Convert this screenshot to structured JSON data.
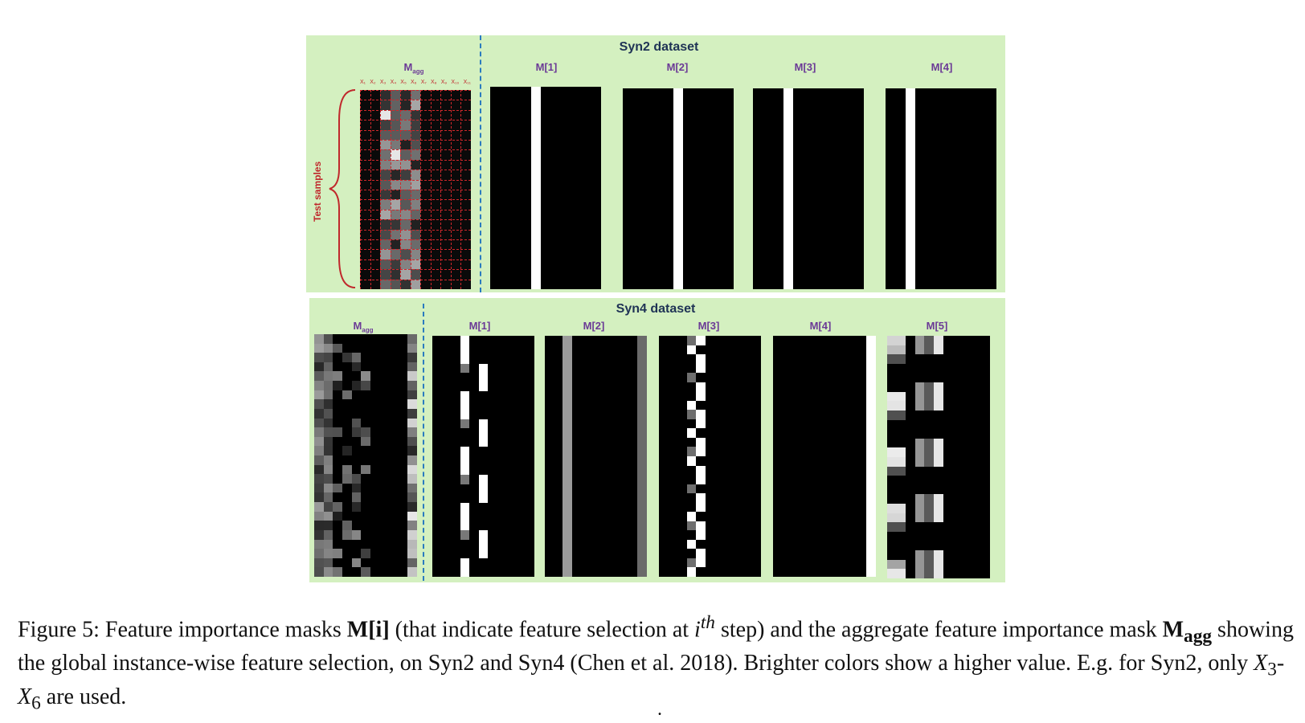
{
  "figure": {
    "syn2": {
      "title": "Syn2 dataset",
      "magg_label": "M",
      "magg_sub": "agg",
      "side_label": "Test samples",
      "feature_labels": [
        "X₁",
        "X₂",
        "X₃",
        "X₄",
        "X₅",
        "X₆",
        "X₇",
        "X₈",
        "X₉",
        "X₁₀",
        "X₁₁"
      ],
      "masks": [
        "M[1]",
        "M[2]",
        "M[3]",
        "M[4]"
      ]
    },
    "syn4": {
      "title": "Syn4 dataset",
      "magg_label": "M",
      "magg_sub": "agg",
      "masks": [
        "M[1]",
        "M[2]",
        "M[3]",
        "M[4]",
        "M[5]"
      ]
    }
  },
  "caption": {
    "prefix": "Figure 5: Feature importance masks ",
    "m_i": "M[i]",
    "part1": " (that indicate feature selection at ",
    "ith": "i",
    "th": "th",
    "part2": " step) and the aggregate feature importance mask ",
    "m_agg": "M",
    "m_agg_sub": "agg",
    "part3": " showing the global instance-wise feature selection, on Syn2 and Syn4 (Chen et al. 2018). Brighter colors show a higher value. E.g. for Syn2, only ",
    "x3": "X",
    "x3_sub": "3",
    "dash": "-",
    "x6": "X",
    "x6_sub": "6",
    "part4": " are used."
  },
  "footer_dot": "."
}
